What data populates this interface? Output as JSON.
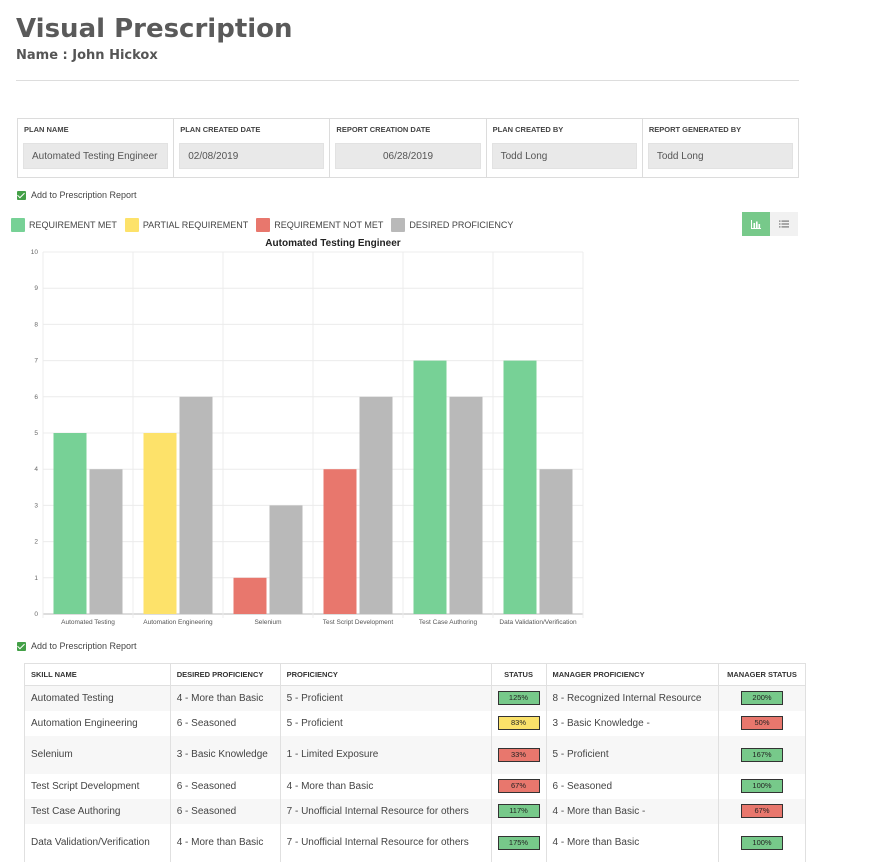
{
  "header": {
    "title": "Visual Prescription",
    "name_line": "Name : John Hickox"
  },
  "plan_info": [
    {
      "label": "PLAN NAME",
      "value": "Automated Testing Engineer"
    },
    {
      "label": "PLAN CREATED DATE",
      "value": "02/08/2019"
    },
    {
      "label": "REPORT CREATION DATE",
      "value": "06/28/2019"
    },
    {
      "label": "PLAN CREATED BY",
      "value": "Todd Long"
    },
    {
      "label": "REPORT GENERATED BY",
      "value": "Todd Long"
    }
  ],
  "checkbox_label": "Add to Prescription Report",
  "legend": [
    {
      "label": "REQUIREMENT MET",
      "color": "#77d196"
    },
    {
      "label": "PARTIAL REQUIREMENT",
      "color": "#fde26a"
    },
    {
      "label": "REQUIREMENT NOT MET",
      "color": "#e8776d"
    },
    {
      "label": "DESIRED PROFICIENCY",
      "color": "#b9b9b9"
    }
  ],
  "toggle": {
    "chart_icon": "bar-chart-icon",
    "list_icon": "list-icon"
  },
  "chart_data": {
    "type": "bar",
    "title": "Automated Testing Engineer",
    "categories": [
      "Automated Testing",
      "Automation Engineering",
      "Selenium",
      "Test Script Development",
      "Test Case Authoring",
      "Data Validation/Verification"
    ],
    "series": [
      {
        "values": [
          5,
          5,
          1,
          4,
          7,
          7
        ],
        "colors": [
          "#77d196",
          "#fde26a",
          "#e8776d",
          "#e8776d",
          "#77d196",
          "#77d196"
        ]
      },
      {
        "values": [
          4,
          6,
          3,
          6,
          6,
          4
        ],
        "color": "#b9b9b9"
      }
    ],
    "ylim": [
      0,
      10
    ],
    "yticks": [
      0,
      1,
      2,
      3,
      4,
      5,
      6,
      7,
      8,
      9,
      10
    ],
    "grid": true
  },
  "skills_table": {
    "headers": [
      "SKILL NAME",
      "DESIRED PROFICIENCY",
      "PROFICIENCY",
      "STATUS",
      "MANAGER PROFICIENCY",
      "MANAGER STATUS"
    ],
    "rows": [
      {
        "skill": "Automated Testing",
        "desired": "4 - More than Basic",
        "proficiency": "5 - Proficient",
        "status": "125%",
        "status_color": "green",
        "manager": "8 - Recognized Internal Resource",
        "manager_status": "200%",
        "manager_status_color": "green"
      },
      {
        "skill": "Automation Engineering",
        "desired": "6 - Seasoned",
        "proficiency": "5 - Proficient",
        "status": "83%",
        "status_color": "yellow",
        "manager": "3 - Basic Knowledge -",
        "manager_status": "50%",
        "manager_status_color": "red"
      },
      {
        "skill": "Selenium",
        "desired": "3 - Basic Knowledge",
        "proficiency": "1 - Limited Exposure",
        "status": "33%",
        "status_color": "red",
        "manager": "5 - Proficient",
        "manager_status": "167%",
        "manager_status_color": "green"
      },
      {
        "skill": "Test Script Development",
        "desired": "6 - Seasoned",
        "proficiency": "4 - More than Basic",
        "status": "67%",
        "status_color": "red",
        "manager": "6 - Seasoned",
        "manager_status": "100%",
        "manager_status_color": "green"
      },
      {
        "skill": "Test Case Authoring",
        "desired": "6 - Seasoned",
        "proficiency": "7 - Unofficial Internal Resource for others",
        "status": "117%",
        "status_color": "green",
        "manager": "4 - More than Basic -",
        "manager_status": "67%",
        "manager_status_color": "red"
      },
      {
        "skill": "Data Validation/Verification",
        "desired": "4 - More than Basic",
        "proficiency": "7 - Unofficial Internal Resource for others",
        "status": "175%",
        "status_color": "green",
        "manager": "4 - More than Basic",
        "manager_status": "100%",
        "manager_status_color": "green"
      }
    ]
  }
}
